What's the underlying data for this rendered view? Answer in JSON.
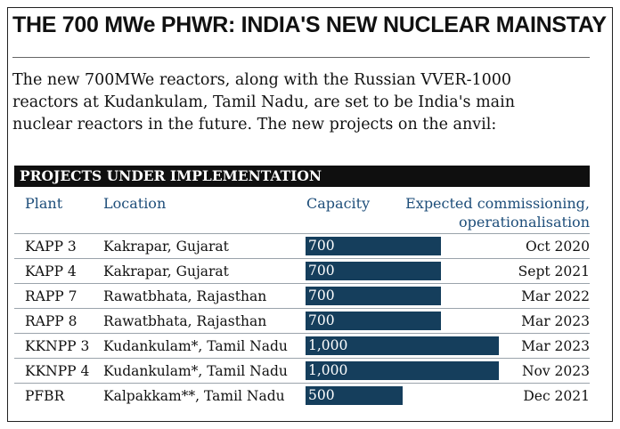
{
  "title": "THE 700 MWe PHWR: INDIA'S NEW NUCLEAR MAINSTAY",
  "intro_lines": [
    "The new 700MWe reactors, along with the Russian VVER-1000",
    "reactors at Kudankulam, Tamil Nadu, are set to be India's main",
    "nuclear reactors in the future. The new projects on the anvil:"
  ],
  "section_title": "PROJECTS UNDER IMPLEMENTATION",
  "headers": {
    "plant": "Plant",
    "location": "Location",
    "capacity": "Capacity",
    "commissioning_line1": "Expected commissioning,",
    "commissioning_line2": "operationalisation"
  },
  "colors": {
    "bar": "#153e5c",
    "header_text": "#1e4e7a",
    "section_bg": "#0f0f0f"
  },
  "chart_data": {
    "type": "bar",
    "orientation": "horizontal",
    "categories": [
      "KAPP 3",
      "KAPP 4",
      "RAPP 7",
      "RAPP 8",
      "KKNPP 3",
      "KKNPP 4",
      "PFBR"
    ],
    "values": [
      700,
      700,
      700,
      700,
      1000,
      1000,
      500
    ],
    "value_labels": [
      "700",
      "700",
      "700",
      "700",
      "1,000",
      "1,000",
      "500"
    ],
    "ylabel": "Capacity",
    "xlim": [
      0,
      1000
    ]
  },
  "rows": [
    {
      "plant": "KAPP 3",
      "location": "Kakrapar, Gujarat",
      "capacity": "700",
      "date": "Oct 2020"
    },
    {
      "plant": "KAPP 4",
      "location": "Kakrapar, Gujarat",
      "capacity": "700",
      "date": "Sept 2021"
    },
    {
      "plant": "RAPP 7",
      "location": "Rawatbhata, Rajasthan",
      "capacity": "700",
      "date": "Mar 2022"
    },
    {
      "plant": "RAPP 8",
      "location": "Rawatbhata, Rajasthan",
      "capacity": "700",
      "date": "Mar 2023"
    },
    {
      "plant": "KKNPP 3",
      "location": "Kudankulam*, Tamil Nadu",
      "capacity": "1,000",
      "date": "Mar 2023"
    },
    {
      "plant": "KKNPP 4",
      "location": "Kudankulam*, Tamil Nadu",
      "capacity": "1,000",
      "date": "Nov 2023"
    },
    {
      "plant": "PFBR",
      "location": "Kalpakkam**, Tamil Nadu",
      "capacity": "500",
      "date": "Dec 2021"
    }
  ]
}
